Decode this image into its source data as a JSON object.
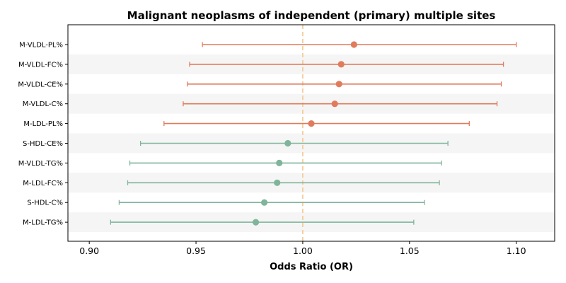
{
  "chart_data": {
    "type": "forest",
    "title": "Malignant neoplasms of independent (primary) multiple sites",
    "xlabel": "Odds Ratio (OR)",
    "xlim": [
      0.89,
      1.118
    ],
    "xticks": [
      "0.90",
      "0.95",
      "1.00",
      "1.05",
      "1.10"
    ],
    "reference_line": 1.0,
    "colors": {
      "positive": "#e07b5c",
      "negative": "#7fb59a",
      "reference": "#f5c58a",
      "band": "#f5f5f5"
    },
    "rows": [
      {
        "label": "M-VLDL-PL%",
        "or": 1.024,
        "lo": 0.953,
        "hi": 1.1,
        "group": "positive"
      },
      {
        "label": "M-VLDL-FC%",
        "or": 1.018,
        "lo": 0.947,
        "hi": 1.094,
        "group": "positive"
      },
      {
        "label": "M-VLDL-CE%",
        "or": 1.017,
        "lo": 0.946,
        "hi": 1.093,
        "group": "positive"
      },
      {
        "label": "M-VLDL-C%",
        "or": 1.015,
        "lo": 0.944,
        "hi": 1.091,
        "group": "positive"
      },
      {
        "label": "M-LDL-PL%",
        "or": 1.004,
        "lo": 0.935,
        "hi": 1.078,
        "group": "positive"
      },
      {
        "label": "S-HDL-CE%",
        "or": 0.993,
        "lo": 0.924,
        "hi": 1.068,
        "group": "negative"
      },
      {
        "label": "M-VLDL-TG%",
        "or": 0.989,
        "lo": 0.919,
        "hi": 1.065,
        "group": "negative"
      },
      {
        "label": "M-LDL-FC%",
        "or": 0.988,
        "lo": 0.918,
        "hi": 1.064,
        "group": "negative"
      },
      {
        "label": "S-HDL-C%",
        "or": 0.982,
        "lo": 0.914,
        "hi": 1.057,
        "group": "negative"
      },
      {
        "label": "M-LDL-TG%",
        "or": 0.978,
        "lo": 0.91,
        "hi": 1.052,
        "group": "negative"
      }
    ]
  }
}
